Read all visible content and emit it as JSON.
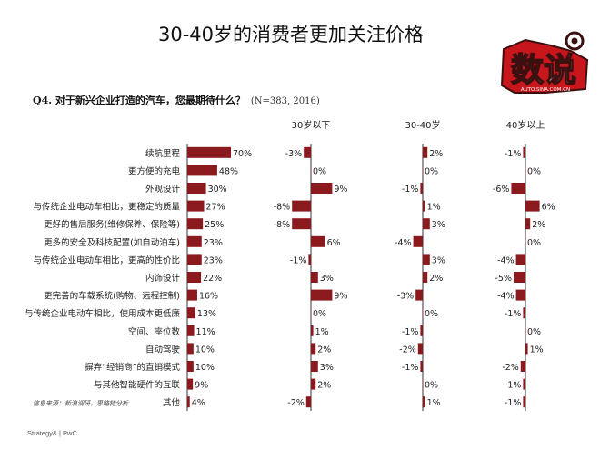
{
  "slide": {
    "title": "30-40岁的消费者更加关注价格",
    "question": "Q4. 对于新兴企业打造的汽车，您最期待什么？",
    "sample": "(N=383, 2016)",
    "source": "信息来源：新浪调研，思略特分析",
    "footer": "Strategy& | PwC"
  },
  "logo": {
    "text": "数说",
    "caption": "AUTO.SINA.COM.CN"
  },
  "colors": {
    "bar": "#8b1a1f",
    "axis": "#333333",
    "text": "#222222"
  },
  "chart_data": {
    "type": "bar",
    "categories": [
      "续航里程",
      "更方便的充电",
      "外观设计",
      "与传统企业电动车相比，更稳定的质量",
      "更好的售后服务(维修保养、保险等)",
      "更多的安全及科技配置(如自动泊车)",
      "与传统企业电动车相比，更高的性价比",
      "内饰设计",
      "更完善的车载系统(购物、远程控制)",
      "与传统企业电动车相比，使用成本更低廉",
      "空间、座位数",
      "自动驾驶",
      "摒弃“经销商”的直销模式",
      "与其他智能硬件的互联",
      "其他"
    ],
    "series": [
      {
        "values": [
          70,
          48,
          30,
          27,
          25,
          23,
          23,
          22,
          16,
          13,
          11,
          10,
          10,
          9,
          4
        ]
      },
      {
        "name": "30岁以下",
        "values": [
          -3,
          0,
          9,
          -8,
          -8,
          6,
          -1,
          3,
          9,
          0,
          1,
          2,
          3,
          2,
          -2
        ]
      },
      {
        "name": "30-40岁",
        "values": [
          2,
          0,
          -1,
          1,
          3,
          -4,
          3,
          2,
          -3,
          0,
          -1,
          -2,
          -1,
          0,
          1
        ]
      },
      {
        "name": "40岁以上",
        "values": [
          -1,
          0,
          -6,
          6,
          2,
          0,
          -4,
          -5,
          -4,
          -1,
          0,
          1,
          -2,
          -1,
          -1
        ]
      }
    ],
    "labels": [
      [
        "70%",
        "48%",
        "30%",
        "27%",
        "25%",
        "23%",
        "23%",
        "22%",
        "16%",
        "13%",
        "11%",
        "10%",
        "10%",
        "9%",
        "4%"
      ],
      [
        "-3%",
        "0%",
        "9%",
        "-8%",
        "-8%",
        "6%",
        "-1%",
        "3%",
        "9%",
        "0%",
        "1%",
        "2%",
        "3%",
        "2%",
        "-2%"
      ],
      [
        "2%",
        "0%",
        "-1%",
        "1%",
        "3%",
        "-4%",
        "3%",
        "2%",
        "-3%",
        "0%",
        "-1%",
        "-2%",
        "-1%",
        "0%",
        "1%"
      ],
      [
        "-1%",
        "0%",
        "-6%",
        "6%",
        "2%",
        "0%",
        "-4%",
        "-5%",
        "-4%",
        "-1%",
        "0%",
        "1%",
        "-2%",
        "-1%",
        "-1%"
      ]
    ],
    "grid": false,
    "legend": "none"
  }
}
